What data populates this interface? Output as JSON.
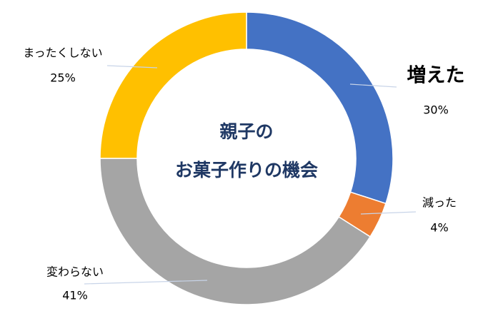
{
  "chart_data": {
    "type": "donut",
    "title": [
      "親子の",
      "お菓子作りの機会"
    ],
    "categories": [
      "増えた",
      "減った",
      "変わらない",
      "まったくしない"
    ],
    "values": [
      30,
      4,
      41,
      25
    ],
    "value_labels": [
      "30%",
      "4%",
      "41%",
      "25%"
    ],
    "colors": [
      "#4472c4",
      "#ed7d31",
      "#a5a5a5",
      "#ffc000"
    ],
    "highlight": {
      "index": 0,
      "color": "#e60000"
    }
  }
}
